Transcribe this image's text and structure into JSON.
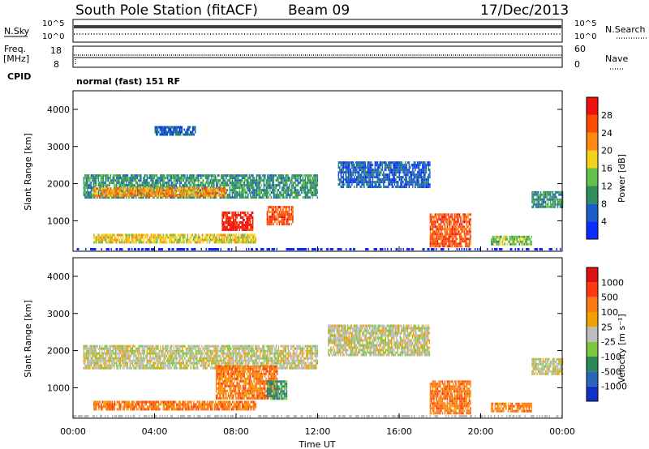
{
  "header": {
    "station": "South Pole Station (fitACF)",
    "beam": "Beam 09",
    "date": "17/Dec/2013"
  },
  "top_panels": {
    "nsky_label": "N.Sky",
    "nsky_ticks": [
      "10^5",
      "10^0"
    ],
    "nsearch_label": "N.Search",
    "nsearch_ticks": [
      "10^5",
      "10^0"
    ],
    "freq_label": "Freq.",
    "freq_unit": "[MHz]",
    "freq_ticks": [
      "18",
      "8"
    ],
    "nave_label": "Nave",
    "nave_ticks": [
      "60",
      "0"
    ],
    "cpid_label": "CPID",
    "cpid_text": "normal (fast) 151 RF"
  },
  "chart_data": [
    {
      "type": "heatmap",
      "name": "Power",
      "ylabel": "Slant Range [km]",
      "xlabel": "Time UT",
      "yticks": [
        "1000",
        "2000",
        "3000",
        "4000"
      ],
      "ylim": [
        180,
        4500
      ],
      "xlim": [
        "00:00",
        "24:00"
      ],
      "colorbar": {
        "label": "Power [dB]",
        "ticks": [
          "4",
          "8",
          "12",
          "16",
          "20",
          "24",
          "28"
        ],
        "colors": [
          "#0a2cff",
          "#1b5dc8",
          "#2f8f5a",
          "#63c04a",
          "#f2d21a",
          "#ff8a10",
          "#ff4a00",
          "#f01010"
        ]
      },
      "regions": [
        {
          "t": [
            0.5,
            12.0
          ],
          "r": [
            1650,
            2250
          ],
          "level": 2
        },
        {
          "t": [
            1.0,
            7.5
          ],
          "r": [
            1650,
            1900
          ],
          "level": 5
        },
        {
          "t": [
            7.3,
            8.8
          ],
          "r": [
            750,
            1250
          ],
          "level": 7
        },
        {
          "t": [
            9.5,
            10.8
          ],
          "r": [
            900,
            1400
          ],
          "level": 6
        },
        {
          "t": [
            1.0,
            9.0
          ],
          "r": [
            400,
            650
          ],
          "level": 4
        },
        {
          "t": [
            17.5,
            19.5
          ],
          "r": [
            300,
            1200
          ],
          "level": 6
        },
        {
          "t": [
            20.5,
            22.5
          ],
          "r": [
            400,
            600
          ],
          "level": 3
        },
        {
          "t": [
            13.0,
            17.5
          ],
          "r": [
            1900,
            2600
          ],
          "level": 1
        },
        {
          "t": [
            4.0,
            6.0
          ],
          "r": [
            3350,
            3550
          ],
          "level": 1
        },
        {
          "t": [
            22.5,
            24.0
          ],
          "r": [
            1400,
            1800
          ],
          "level": 2
        }
      ]
    },
    {
      "type": "heatmap",
      "name": "Velocity",
      "ylabel": "Slant Range [km]",
      "xlabel": "Time UT",
      "yticks": [
        "1000",
        "2000",
        "3000",
        "4000"
      ],
      "ylim": [
        180,
        4500
      ],
      "xlim": [
        "00:00",
        "24:00"
      ],
      "colorbar": {
        "label": "Velocity [m s⁻¹]",
        "ticks": [
          "1000",
          "500",
          "100",
          "25",
          "-25",
          "-100",
          "-500",
          "-1000"
        ],
        "colors": [
          "#1030c8",
          "#2a66b8",
          "#2a8a55",
          "#7cc83c",
          "#bdbdbd",
          "#f2a000",
          "#ff7a10",
          "#ff3a10",
          "#e01010"
        ]
      },
      "regions": [
        {
          "t": [
            0.5,
            12.0
          ],
          "r": [
            1550,
            2150
          ],
          "level": 4
        },
        {
          "t": [
            7.0,
            10.0
          ],
          "r": [
            700,
            1600
          ],
          "level": 6
        },
        {
          "t": [
            9.5,
            10.5
          ],
          "r": [
            700,
            1200
          ],
          "level": 2
        },
        {
          "t": [
            1.0,
            9.0
          ],
          "r": [
            400,
            650
          ],
          "level": 6
        },
        {
          "t": [
            17.5,
            19.5
          ],
          "r": [
            300,
            1200
          ],
          "level": 6
        },
        {
          "t": [
            20.5,
            22.5
          ],
          "r": [
            400,
            600
          ],
          "level": 6
        },
        {
          "t": [
            12.5,
            17.5
          ],
          "r": [
            1900,
            2700
          ],
          "level": 4
        },
        {
          "t": [
            22.5,
            24.0
          ],
          "r": [
            1400,
            1800
          ],
          "level": 4
        }
      ]
    }
  ],
  "x_axis": {
    "ticks": [
      "00:00",
      "04:00",
      "08:00",
      "12:00",
      "16:00",
      "20:00",
      "00:00"
    ],
    "label": "Time UT"
  }
}
